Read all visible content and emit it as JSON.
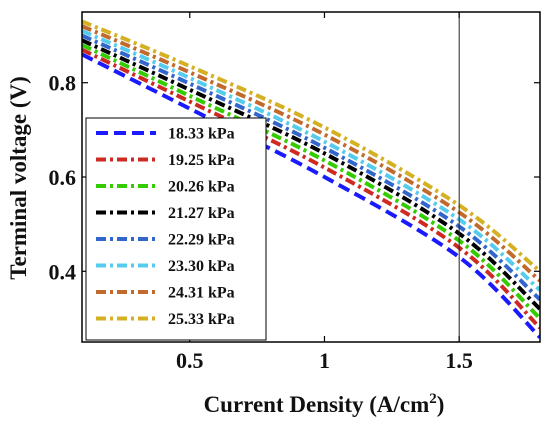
{
  "chart_data": {
    "type": "line",
    "xlabel": "Current Density (A/cm",
    "xlabel_sup": "2",
    "xlabel_suffix": ")",
    "ylabel": "Terminal voltage (V)",
    "xlim": [
      0.1,
      1.8
    ],
    "ylim": [
      0.25,
      0.95
    ],
    "xticks": [
      "0.5",
      "1",
      "1.5"
    ],
    "xtick_values": [
      0.5,
      1.0,
      1.5
    ],
    "yticks": [
      "0.4",
      "0.6",
      "0.8"
    ],
    "ytick_values": [
      0.4,
      0.6,
      0.8
    ],
    "vline_x": 1.5,
    "legend_position": "left-center",
    "x": [
      0.1,
      0.5,
      1.0,
      1.5,
      1.8
    ],
    "series": [
      {
        "name": "18.33 kPa",
        "color": "#1a1aff",
        "dash": "dash",
        "values": [
          0.86,
          0.745,
          0.6,
          0.43,
          0.26
        ]
      },
      {
        "name": "19.25 kPa",
        "color": "#cc2a22",
        "dash": "dashdot",
        "values": [
          0.87,
          0.76,
          0.62,
          0.45,
          0.28
        ]
      },
      {
        "name": "20.26 kPa",
        "color": "#33cc00",
        "dash": "dashdot",
        "values": [
          0.88,
          0.772,
          0.635,
          0.465,
          0.3
        ]
      },
      {
        "name": "21.27 kPa",
        "color": "#000000",
        "dash": "dashdot",
        "values": [
          0.89,
          0.785,
          0.65,
          0.48,
          0.32
        ]
      },
      {
        "name": "22.29 kPa",
        "color": "#3366cc",
        "dash": "dashdot",
        "values": [
          0.9,
          0.798,
          0.662,
          0.495,
          0.34
        ]
      },
      {
        "name": "23.30 kPa",
        "color": "#55ccee",
        "dash": "dashdot",
        "values": [
          0.91,
          0.81,
          0.675,
          0.51,
          0.36
        ]
      },
      {
        "name": "24.31 kPa",
        "color": "#c26a2e",
        "dash": "dashdot",
        "values": [
          0.92,
          0.822,
          0.69,
          0.525,
          0.38
        ]
      },
      {
        "name": "25.33 kPa",
        "color": "#d4b023",
        "dash": "dashdot",
        "values": [
          0.93,
          0.835,
          0.705,
          0.54,
          0.4
        ]
      }
    ]
  }
}
